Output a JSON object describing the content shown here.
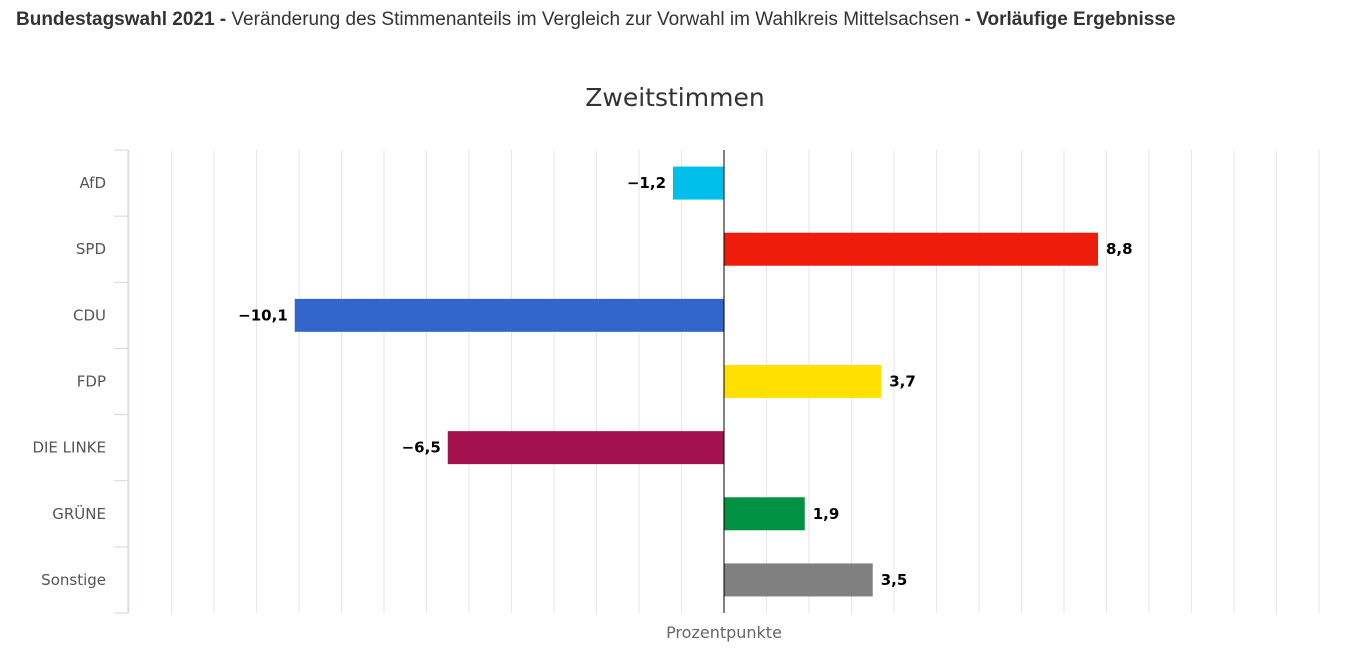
{
  "header": {
    "title_bold": "Bundestagswahl 2021",
    "separator": " - ",
    "title_regular": "Veränderung des Stimmenanteils im Vergleich zur Vorwahl im Wahlkreis Mittelsachsen",
    "separator2": " - ",
    "title_suffix": "Vorläufige Ergebnisse"
  },
  "chart_data": {
    "type": "bar",
    "orientation": "horizontal",
    "title": "Zweitstimmen",
    "xlabel": "Prozentpunkte",
    "ylabel": "",
    "grid": true,
    "xlim": [
      -14,
      14
    ],
    "categories": [
      "AfD",
      "SPD",
      "CDU",
      "FDP",
      "DIE LINKE",
      "GRÜNE",
      "Sonstige"
    ],
    "values": [
      -1.2,
      8.8,
      -10.1,
      3.7,
      -6.5,
      1.9,
      3.5
    ],
    "value_labels": [
      "−1,2",
      "8,8",
      "−10,1",
      "3,7",
      "−6,5",
      "1,9",
      "3,5"
    ],
    "colors": [
      "#00BFEA",
      "#EE1C0A",
      "#3366CC",
      "#FFE000",
      "#A3114F",
      "#009142",
      "#808080"
    ]
  }
}
